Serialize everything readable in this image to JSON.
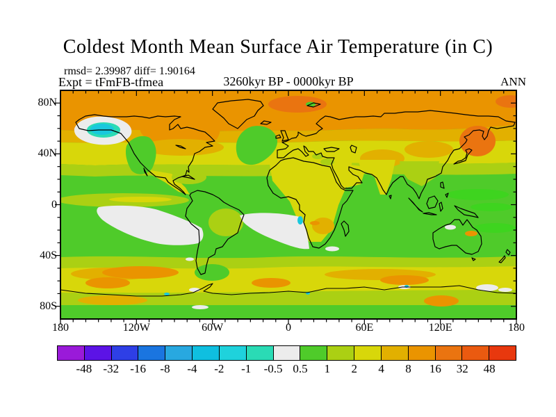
{
  "title": "Coldest Month Mean Surface Air Temperature (in C)",
  "annotations": {
    "stats_line": "rmsd= 2.39987 diff= 1.90164",
    "expt_line": "Expt = tFmFB-tfmea",
    "period": "3260kyr BP - 0000kyr BP",
    "season": "ANN"
  },
  "chart_data": {
    "type": "heatmap",
    "subtype": "filled-contour anomaly map on equirectangular world projection",
    "title": "Coldest Month Mean Surface Air Temperature (in C)",
    "units": "C",
    "stats": {
      "rmsd": 2.39987,
      "diff": 1.90164
    },
    "experiment": "tFmFB-tfmea",
    "period": "3260kyr BP - 0000kyr BP",
    "season": "ANN",
    "x_axis": {
      "ticks": [
        "180",
        "120W",
        "60W",
        "0",
        "60E",
        "120E",
        "180"
      ],
      "major_tick_interval_deg": 60,
      "minor_tick_interval_deg": 10,
      "range_deg": [
        -180,
        180
      ]
    },
    "y_axis": {
      "ticks": [
        "80N",
        "40N",
        "0",
        "40S",
        "80S"
      ],
      "major_tick_interval_deg": 40,
      "minor_tick_interval_deg": 10,
      "range_deg": [
        90,
        -90
      ]
    },
    "colorbar": {
      "orientation": "horizontal",
      "boundary_labels": [
        "-48",
        "-32",
        "-16",
        "-8",
        "-4",
        "-2",
        "-1",
        "-0.5",
        "0.5",
        "1",
        "2",
        "4",
        "8",
        "16",
        "32",
        "48"
      ],
      "segment_colors": [
        "#9a1ad9",
        "#5c13e6",
        "#2e3fe6",
        "#1a75e0",
        "#28a8e0",
        "#0fbfe0",
        "#1fd2dc",
        "#2adbb5",
        "#ececec",
        "#4fcb2a",
        "#abd013",
        "#d8d70a",
        "#e2b000",
        "#ea9400",
        "#ea7410",
        "#ea5a10",
        "#e8380e"
      ]
    },
    "features": [
      {
        "region": "Gulf of Alaska / NE Pacific cold spot",
        "anomaly_c": "-4 to -1 core ringed by -0.5 to 0.5 (white)"
      },
      {
        "region": "Arctic Ocean and high northern latitudes",
        "anomaly_c": "4 to 8"
      },
      {
        "region": "Barents Sea / Svalbard local maximum",
        "anomaly_c": "8 to 16"
      },
      {
        "region": "Sea of Okhotsk / Kamchatka",
        "anomaly_c": "8 to 16"
      },
      {
        "region": "Canada / Hudson Bay region",
        "anomaly_c": "4 to 8"
      },
      {
        "region": "Northern mid-latitude continents (USA, Europe, Asia)",
        "anomaly_c": "2 to 4 with 4 to 8 patches"
      },
      {
        "region": "North Atlantic near British Isles",
        "anomaly_c": "0.5 to 1"
      },
      {
        "region": "Tropical oceans",
        "anomaly_c": "0.5 to 2"
      },
      {
        "region": "Africa and tropical land",
        "anomaly_c": "1 to 4"
      },
      {
        "region": "Southeast Pacific subtropics",
        "anomaly_c": "-0.5 to 0.5 (white patch)"
      },
      {
        "region": "Southeast Atlantic off Namibia",
        "anomaly_c": "-0.5 to 0.5 (white patch) with small -2 to -1 core"
      },
      {
        "region": "Southern Ocean band near 55S-65S",
        "anomaly_c": "2 to 4 with 4 to 8 patches"
      },
      {
        "region": "Antarctic coastal spots",
        "anomaly_c": "-2 to 0.5"
      }
    ]
  }
}
